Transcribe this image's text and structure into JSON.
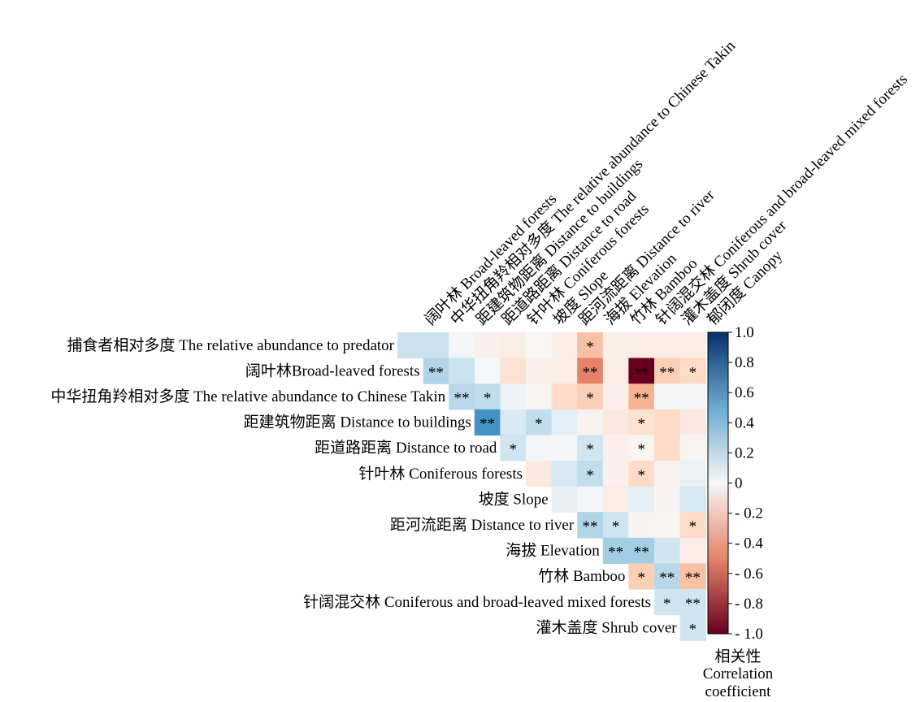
{
  "chart_data": {
    "type": "heatmap",
    "layout": "upper-triangle",
    "row_labels": [
      "捕食者相对多度 The relative abundance to predator",
      "阔叶林Broad-leaved forests",
      "中华扭角羚相对多度 The relative abundance to Chinese Takin",
      "距建筑物距离 Distance to buildings",
      "距道路距离 Distance to road",
      "针叶林 Coniferous forests",
      "坡度 Slope",
      "距河流距离 Distance to river",
      "海拔 Elevation",
      "竹林 Bamboo",
      "针阔混交林 Coniferous and broad-leaved mixed forests",
      "灌木盖度  Shrub cover"
    ],
    "column_labels": [
      "阔叶林 Broad-leaved forests",
      "中华扭角羚相对多度 The relative abundance to Chinese Takin",
      "距建筑物距离 Distance to buildings",
      "距道路距离 Distance to road",
      "针叶林 Coniferous forests",
      "坡度 Slope",
      "距河流距离 Distance to river",
      "海拔 Elevation",
      "竹林 Bamboo",
      "针阔混交林 Coniferous and broad-leaved mixed forests",
      "灌木盖度 Shrub cover",
      "郁闭度 Canopy"
    ],
    "values": [
      [
        0.22,
        0.22,
        0.02,
        -0.05,
        -0.07,
        -0.01,
        -0.07,
        -0.3,
        -0.06,
        -0.07,
        -0.07,
        -0.07
      ],
      [
        null,
        0.3,
        0.22,
        0.01,
        -0.15,
        -0.05,
        -0.07,
        -0.5,
        -0.08,
        -1.0,
        -0.25,
        -0.2
      ],
      [
        null,
        null,
        0.28,
        0.25,
        0.05,
        -0.02,
        -0.2,
        -0.25,
        -0.05,
        -0.35,
        0.02,
        0.02
      ],
      [
        null,
        null,
        null,
        0.6,
        0.15,
        0.25,
        0.1,
        -0.03,
        -0.1,
        -0.15,
        -0.2,
        -0.1
      ],
      [
        null,
        null,
        null,
        null,
        0.2,
        0.02,
        0.02,
        0.2,
        -0.05,
        -0.02,
        -0.2,
        -0.02
      ],
      [
        null,
        null,
        null,
        null,
        null,
        -0.1,
        0.18,
        0.25,
        -0.05,
        -0.2,
        -0.03,
        0.07
      ],
      [
        null,
        null,
        null,
        null,
        null,
        null,
        0.08,
        0.02,
        -0.08,
        0.1,
        -0.03,
        0.18
      ],
      [
        null,
        null,
        null,
        null,
        null,
        null,
        null,
        0.3,
        0.2,
        -0.03,
        -0.02,
        -0.2
      ],
      [
        null,
        null,
        null,
        null,
        null,
        null,
        null,
        null,
        0.35,
        0.35,
        0.2,
        -0.07
      ],
      [
        null,
        null,
        null,
        null,
        null,
        null,
        null,
        null,
        null,
        -0.25,
        0.28,
        -0.3
      ],
      [
        null,
        null,
        null,
        null,
        null,
        null,
        null,
        null,
        null,
        null,
        0.2,
        0.2
      ],
      [
        null,
        null,
        null,
        null,
        null,
        null,
        null,
        null,
        null,
        null,
        null,
        0.2
      ]
    ],
    "significance": [
      [
        "",
        "",
        "",
        "",
        "",
        "",
        "",
        "*",
        "",
        "",
        "",
        ""
      ],
      [
        "",
        "**",
        "",
        "",
        "",
        "",
        "",
        "**",
        "",
        "**",
        "**",
        "*"
      ],
      [
        "",
        "",
        "**",
        "*",
        "",
        "",
        "",
        "*",
        "",
        "**",
        "",
        ""
      ],
      [
        "",
        "",
        "",
        "**",
        "",
        "*",
        "",
        "",
        "",
        "*",
        "",
        ""
      ],
      [
        "",
        "",
        "",
        "",
        "*",
        "",
        "",
        "*",
        "",
        "*",
        "",
        ""
      ],
      [
        "",
        "",
        "",
        "",
        "",
        "",
        "",
        "*",
        "",
        "*",
        "",
        ""
      ],
      [
        "",
        "",
        "",
        "",
        "",
        "",
        "",
        "",
        "",
        "",
        "",
        ""
      ],
      [
        "",
        "",
        "",
        "",
        "",
        "",
        "",
        "**",
        "*",
        "",
        "",
        "*"
      ],
      [
        "",
        "",
        "",
        "",
        "",
        "",
        "",
        "",
        "**",
        "**",
        "",
        ""
      ],
      [
        "",
        "",
        "",
        "",
        "",
        "",
        "",
        "",
        "",
        "*",
        "**",
        "**"
      ],
      [
        "",
        "",
        "",
        "",
        "",
        "",
        "",
        "",
        "",
        "",
        "*",
        "**"
      ],
      [
        "",
        "",
        "",
        "",
        "",
        "",
        "",
        "",
        "",
        "",
        "",
        "*"
      ]
    ],
    "colorbar": {
      "range": [
        -1.0,
        1.0
      ],
      "tick_labels": [
        "1.0",
        "0.8",
        "0.6",
        "0.4",
        "0.2",
        "0",
        "- 0.2",
        "- 0.4",
        "- 0.6",
        "- 0.8",
        "- 1.0"
      ],
      "title_cn": "相关性",
      "title_en_line1": "Correlation",
      "title_en_line2": "coefficient"
    },
    "colormap": {
      "positive": "#08306b",
      "neutral": "#f7f7f7",
      "negative": "#67001f"
    }
  }
}
